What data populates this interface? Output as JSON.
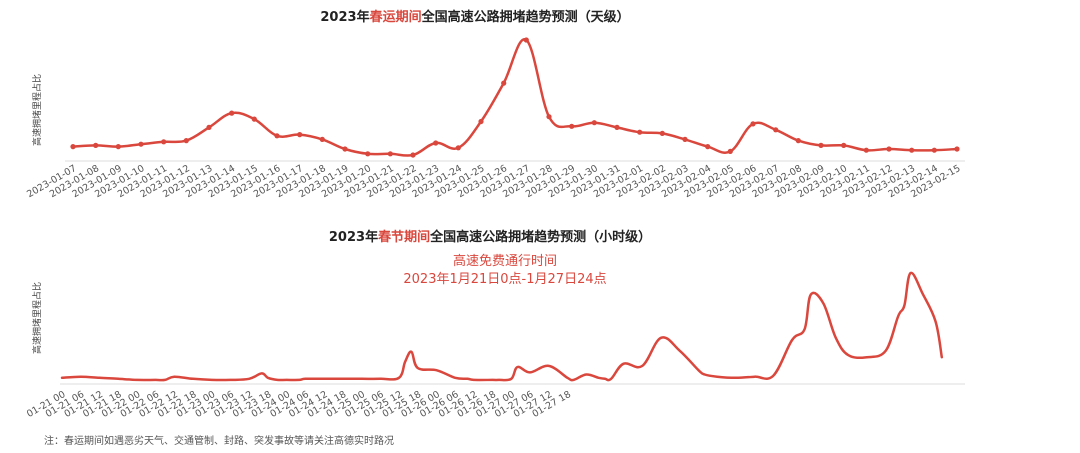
{
  "colors": {
    "line": "#d9473d",
    "highlight": "#d9473d",
    "axis": "#dddddd"
  },
  "footnote": "注：春运期间如遇恶劣天气、交通管制、封路、突发事故等请关注高德实时路况",
  "chart_data": [
    {
      "type": "line",
      "title_parts": [
        "2023年",
        "春运期间",
        "全国高速公路拥堵趋势预测（天级）"
      ],
      "ylabel": "高速拥堵里程占比",
      "xlabel": "",
      "ylim": [
        0,
        100
      ],
      "x": [
        "2023-01-07",
        "2023-01-08",
        "2023-01-09",
        "2023-01-10",
        "2023-01-11",
        "2023-01-12",
        "2023-01-13",
        "2023-01-14",
        "2023-01-15",
        "2023-01-16",
        "2023-01-17",
        "2023-01-18",
        "2023-01-19",
        "2023-01-20",
        "2023-01-21",
        "2023-01-22",
        "2023-01-23",
        "2023-01-24",
        "2023-01-25",
        "2023-01-26",
        "2023-01-27",
        "2023-01-28",
        "2023-01-29",
        "2023-01-30",
        "2023-01-31",
        "2023-02-01",
        "2023-02-02",
        "2023-02-03",
        "2023-02-04",
        "2023-02-05",
        "2023-02-06",
        "2023-02-07",
        "2023-02-08",
        "2023-02-09",
        "2023-02-10",
        "2023-02-11",
        "2023-02-12",
        "2023-02-13",
        "2023-02-14",
        "2023-02-15"
      ],
      "values": [
        11,
        12,
        11,
        13,
        15,
        16,
        27,
        39,
        34,
        20,
        21,
        17,
        9,
        5,
        5,
        4,
        14,
        10,
        32,
        64,
        100,
        36,
        28,
        31,
        27,
        23,
        22,
        17,
        11,
        7,
        30,
        25,
        16,
        12,
        12,
        8,
        9,
        8,
        8,
        9
      ],
      "grid": false
    },
    {
      "type": "line",
      "title_parts": [
        "2023年",
        "春节期间",
        "全国高速公路拥堵趋势预测（小时级）"
      ],
      "ylabel": "高速拥堵里程占比",
      "xlabel": "",
      "ylim": [
        0,
        100
      ],
      "x_ticks": [
        "01-21 00",
        "01-21 06",
        "01-21 12",
        "01-21 18",
        "01-22 00",
        "01-22 06",
        "01-22 12",
        "01-22 18",
        "01-23 00",
        "01-23 06",
        "01-23 12",
        "01-23 18",
        "01-24 00",
        "01-24 06",
        "01-24 12",
        "01-24 18",
        "01-25 00",
        "01-25 06",
        "01-25 12",
        "01-25 18",
        "01-26 00",
        "01-26 06",
        "01-26 12",
        "01-26 18",
        "01-27 00",
        "01-27 06",
        "01-27 12",
        "01-27 18"
      ],
      "x": [
        0,
        6,
        12,
        18,
        24,
        30,
        33,
        36,
        42,
        48,
        54,
        60,
        64,
        66,
        69,
        72,
        76,
        78,
        84,
        90,
        96,
        102,
        108,
        110,
        112,
        114,
        120,
        126,
        130,
        132,
        138,
        140,
        144,
        146,
        150,
        156,
        162,
        164,
        168,
        172,
        174,
        176,
        180,
        186,
        192,
        198,
        204,
        206,
        210,
        216,
        222,
        228,
        234,
        238,
        240,
        244,
        248,
        252,
        258,
        264,
        268,
        270,
        272,
        276,
        280,
        282
      ],
      "values": [
        3,
        4,
        3,
        2,
        1,
        1,
        1,
        4,
        2,
        1,
        1,
        2,
        7,
        3,
        1,
        1,
        1,
        2,
        2,
        2,
        2,
        2,
        3,
        18,
        27,
        12,
        10,
        3,
        2,
        1,
        1,
        1,
        2,
        13,
        8,
        14,
        3,
        1,
        6,
        3,
        2,
        2,
        16,
        14,
        40,
        28,
        10,
        6,
        4,
        3,
        4,
        5,
        38,
        48,
        80,
        72,
        40,
        24,
        22,
        28,
        60,
        70,
        100,
        80,
        55,
        22
      ],
      "annotation": {
        "text": [
          "高速免费通行时间",
          "2023年1月21日0点-1月27日24点"
        ]
      },
      "grid": false
    }
  ]
}
